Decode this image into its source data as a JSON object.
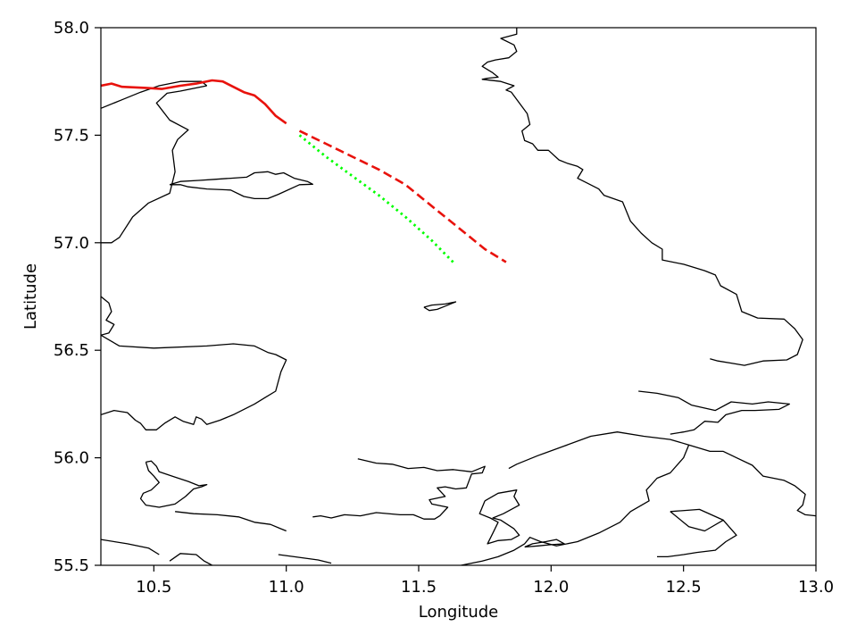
{
  "chart_data": {
    "type": "line",
    "title": "",
    "xlabel": "Longitude",
    "ylabel": "Latitude",
    "xlim": [
      10.3,
      13.0
    ],
    "ylim": [
      55.5,
      58.0
    ],
    "xticks": [
      10.5,
      11.0,
      11.5,
      12.0,
      12.5,
      13.0
    ],
    "xtick_labels": [
      "10.5",
      "11.0",
      "11.5",
      "12.0",
      "12.5",
      "13.0"
    ],
    "yticks": [
      55.5,
      56.0,
      56.5,
      57.0,
      57.5,
      58.0
    ],
    "ytick_labels": [
      "55.5",
      "56.0",
      "56.5",
      "57.0",
      "57.5",
      "58.0"
    ],
    "grid": false,
    "legend": "none",
    "series": [
      {
        "style": "solid",
        "color": "#e8120c",
        "lon": [
          10.3,
          10.34,
          10.38,
          10.47,
          10.53,
          10.6,
          10.66,
          10.72,
          10.76,
          10.8,
          10.84,
          10.88,
          10.92,
          10.96,
          11.0
        ],
        "lat": [
          57.73,
          57.74,
          57.725,
          57.72,
          57.715,
          57.73,
          57.74,
          57.755,
          57.75,
          57.725,
          57.7,
          57.685,
          57.645,
          57.59,
          57.555
        ]
      },
      {
        "style": "dashed",
        "color": "#e8120c",
        "lon": [
          11.05,
          11.15,
          11.25,
          11.35,
          11.45,
          11.55,
          11.65,
          11.75,
          11.83
        ],
        "lat": [
          57.52,
          57.46,
          57.4,
          57.34,
          57.27,
          57.17,
          57.07,
          56.97,
          56.91
        ]
      },
      {
        "style": "dotted",
        "color": "#00ff00",
        "lon": [
          11.05,
          11.15,
          11.25,
          11.35,
          11.45,
          11.55,
          11.63
        ],
        "lat": [
          57.5,
          57.4,
          57.31,
          57.22,
          57.12,
          57.01,
          56.91
        ]
      }
    ]
  },
  "coastlines": [
    [
      [
        10.3,
        57.625
      ],
      [
        10.38,
        57.665
      ],
      [
        10.45,
        57.7
      ],
      [
        10.52,
        57.73
      ],
      [
        10.6,
        57.75
      ],
      [
        10.68,
        57.75
      ],
      [
        10.7,
        57.73
      ]
    ],
    [
      [
        10.7,
        57.73
      ],
      [
        10.6,
        57.705
      ],
      [
        10.55,
        57.695
      ],
      [
        10.51,
        57.65
      ],
      [
        10.56,
        57.57
      ],
      [
        10.63,
        57.525
      ],
      [
        10.59,
        57.48
      ],
      [
        10.57,
        57.43
      ],
      [
        10.58,
        57.33
      ],
      [
        10.56,
        57.23
      ],
      [
        10.48,
        57.185
      ],
      [
        10.42,
        57.12
      ],
      [
        10.37,
        57.025
      ],
      [
        10.34,
        57.0
      ],
      [
        10.3,
        57.0
      ]
    ],
    [
      [
        10.3,
        56.75
      ],
      [
        10.33,
        56.72
      ],
      [
        10.34,
        56.68
      ],
      [
        10.32,
        56.64
      ],
      [
        10.35,
        56.62
      ],
      [
        10.33,
        56.58
      ],
      [
        10.3,
        56.57
      ]
    ],
    [
      [
        10.3,
        56.57
      ],
      [
        10.37,
        56.52
      ],
      [
        10.5,
        56.51
      ],
      [
        10.7,
        56.52
      ],
      [
        10.8,
        56.53
      ],
      [
        10.88,
        56.52
      ],
      [
        10.93,
        56.49
      ],
      [
        10.96,
        56.48
      ],
      [
        11.0,
        56.455
      ],
      [
        10.98,
        56.4
      ],
      [
        10.96,
        56.31
      ],
      [
        10.92,
        56.28
      ],
      [
        10.88,
        56.25
      ],
      [
        10.8,
        56.2
      ],
      [
        10.75,
        56.175
      ],
      [
        10.7,
        56.155
      ],
      [
        10.68,
        56.18
      ],
      [
        10.66,
        56.19
      ],
      [
        10.65,
        56.155
      ],
      [
        10.61,
        56.17
      ],
      [
        10.58,
        56.19
      ],
      [
        10.54,
        56.16
      ],
      [
        10.51,
        56.13
      ],
      [
        10.47,
        56.13
      ],
      [
        10.45,
        56.16
      ],
      [
        10.43,
        56.175
      ],
      [
        10.4,
        56.21
      ],
      [
        10.35,
        56.22
      ],
      [
        10.3,
        56.2
      ]
    ],
    [
      [
        10.47,
        55.98
      ],
      [
        10.48,
        55.94
      ],
      [
        10.5,
        55.915
      ],
      [
        10.52,
        55.885
      ],
      [
        10.49,
        55.85
      ],
      [
        10.46,
        55.835
      ],
      [
        10.45,
        55.81
      ],
      [
        10.47,
        55.78
      ],
      [
        10.52,
        55.77
      ],
      [
        10.58,
        55.785
      ],
      [
        10.62,
        55.82
      ],
      [
        10.65,
        55.855
      ],
      [
        10.68,
        55.865
      ],
      [
        10.7,
        55.875
      ],
      [
        10.67,
        55.87
      ],
      [
        10.63,
        55.89
      ],
      [
        10.58,
        55.91
      ],
      [
        10.52,
        55.935
      ],
      [
        10.51,
        55.96
      ],
      [
        10.49,
        55.985
      ],
      [
        10.47,
        55.98
      ]
    ],
    [
      [
        10.3,
        55.62
      ],
      [
        10.4,
        55.6
      ],
      [
        10.48,
        55.58
      ],
      [
        10.52,
        55.55
      ]
    ],
    [
      [
        10.56,
        55.52
      ],
      [
        10.6,
        55.555
      ],
      [
        10.66,
        55.55
      ],
      [
        10.69,
        55.52
      ],
      [
        10.72,
        55.5
      ]
    ],
    [
      [
        10.56,
        57.27
      ],
      [
        10.6,
        57.285
      ],
      [
        10.67,
        57.29
      ],
      [
        10.73,
        57.295
      ],
      [
        10.79,
        57.3
      ],
      [
        10.85,
        57.305
      ],
      [
        10.88,
        57.325
      ],
      [
        10.93,
        57.33
      ],
      [
        10.96,
        57.318
      ],
      [
        10.99,
        57.325
      ],
      [
        11.03,
        57.3
      ],
      [
        11.08,
        57.285
      ],
      [
        11.1,
        57.272
      ],
      [
        11.05,
        57.27
      ],
      [
        10.97,
        57.225
      ],
      [
        10.93,
        57.205
      ],
      [
        10.88,
        57.205
      ],
      [
        10.84,
        57.215
      ],
      [
        10.79,
        57.245
      ],
      [
        10.7,
        57.25
      ],
      [
        10.63,
        57.26
      ],
      [
        10.6,
        57.27
      ],
      [
        10.56,
        57.27
      ]
    ],
    [
      [
        11.52,
        56.7
      ],
      [
        11.55,
        56.71
      ],
      [
        11.6,
        56.715
      ],
      [
        11.64,
        56.725
      ],
      [
        11.6,
        56.705
      ],
      [
        11.57,
        56.69
      ],
      [
        11.54,
        56.685
      ],
      [
        11.52,
        56.7
      ]
    ],
    [
      [
        11.27,
        55.995
      ],
      [
        11.34,
        55.975
      ],
      [
        11.4,
        55.97
      ],
      [
        11.46,
        55.95
      ],
      [
        11.52,
        55.955
      ],
      [
        11.57,
        55.94
      ],
      [
        11.63,
        55.945
      ],
      [
        11.7,
        55.935
      ],
      [
        11.75,
        55.96
      ],
      [
        11.74,
        55.93
      ],
      [
        11.7,
        55.925
      ],
      [
        11.68,
        55.86
      ],
      [
        11.64,
        55.855
      ],
      [
        11.6,
        55.865
      ],
      [
        11.57,
        55.86
      ],
      [
        11.6,
        55.82
      ],
      [
        11.54,
        55.805
      ],
      [
        11.55,
        55.785
      ],
      [
        11.61,
        55.77
      ],
      [
        11.58,
        55.73
      ],
      [
        11.56,
        55.715
      ],
      [
        11.52,
        55.715
      ],
      [
        11.48,
        55.735
      ],
      [
        11.43,
        55.735
      ],
      [
        11.34,
        55.745
      ],
      [
        11.28,
        55.73
      ],
      [
        11.22,
        55.735
      ],
      [
        11.17,
        55.72
      ],
      [
        11.13,
        55.73
      ],
      [
        11.1,
        55.725
      ]
    ],
    [
      [
        11.84,
        55.95
      ],
      [
        11.87,
        55.97
      ],
      [
        11.95,
        56.01
      ],
      [
        12.05,
        56.055
      ],
      [
        12.15,
        56.1
      ],
      [
        12.25,
        56.12
      ],
      [
        12.35,
        56.1
      ],
      [
        12.45,
        56.085
      ],
      [
        12.52,
        56.06
      ],
      [
        12.6,
        56.03
      ],
      [
        12.65,
        56.03
      ],
      [
        12.7,
        56.0
      ],
      [
        12.76,
        55.965
      ],
      [
        12.8,
        55.915
      ],
      [
        12.88,
        55.895
      ],
      [
        12.92,
        55.87
      ],
      [
        12.96,
        55.83
      ],
      [
        12.95,
        55.78
      ],
      [
        12.93,
        55.755
      ],
      [
        12.96,
        55.735
      ],
      [
        13.0,
        55.73
      ]
    ],
    [
      [
        12.52,
        56.06
      ],
      [
        12.5,
        56.0
      ],
      [
        12.45,
        55.93
      ],
      [
        12.4,
        55.905
      ],
      [
        12.36,
        55.85
      ],
      [
        12.37,
        55.8
      ],
      [
        12.3,
        55.75
      ],
      [
        12.26,
        55.7
      ],
      [
        12.18,
        55.65
      ],
      [
        12.1,
        55.61
      ],
      [
        12.02,
        55.59
      ],
      [
        11.96,
        55.61
      ],
      [
        11.92,
        55.63
      ],
      [
        11.9,
        55.6
      ],
      [
        11.86,
        55.57
      ],
      [
        11.8,
        55.54
      ],
      [
        11.74,
        55.52
      ],
      [
        11.66,
        55.5
      ]
    ],
    [
      [
        12.33,
        56.31
      ],
      [
        12.4,
        56.3
      ],
      [
        12.48,
        56.28
      ],
      [
        12.53,
        56.245
      ],
      [
        12.62,
        56.22
      ],
      [
        12.68,
        56.26
      ],
      [
        12.76,
        56.25
      ],
      [
        12.82,
        56.26
      ],
      [
        12.9,
        56.25
      ],
      [
        12.86,
        56.225
      ],
      [
        12.77,
        56.22
      ],
      [
        12.72,
        56.22
      ],
      [
        12.66,
        56.2
      ],
      [
        12.63,
        56.165
      ],
      [
        12.58,
        56.17
      ],
      [
        12.54,
        56.13
      ],
      [
        12.5,
        56.12
      ],
      [
        12.45,
        56.11
      ]
    ],
    [
      [
        11.87,
        58.0
      ],
      [
        11.87,
        57.97
      ],
      [
        11.81,
        57.95
      ],
      [
        11.86,
        57.92
      ],
      [
        11.87,
        57.89
      ],
      [
        11.84,
        57.86
      ],
      [
        11.79,
        57.85
      ],
      [
        11.76,
        57.84
      ],
      [
        11.74,
        57.82
      ],
      [
        11.78,
        57.79
      ],
      [
        11.8,
        57.77
      ],
      [
        11.76,
        57.765
      ],
      [
        11.74,
        57.76
      ],
      [
        11.81,
        57.75
      ],
      [
        11.86,
        57.73
      ],
      [
        11.83,
        57.71
      ],
      [
        11.85,
        57.7
      ],
      [
        11.88,
        57.65
      ],
      [
        11.91,
        57.6
      ],
      [
        11.92,
        57.55
      ],
      [
        11.89,
        57.52
      ],
      [
        11.9,
        57.475
      ],
      [
        11.93,
        57.46
      ],
      [
        11.95,
        57.43
      ],
      [
        11.99,
        57.43
      ],
      [
        12.03,
        57.385
      ],
      [
        12.06,
        57.37
      ],
      [
        12.1,
        57.355
      ],
      [
        12.12,
        57.34
      ],
      [
        12.1,
        57.3
      ],
      [
        12.14,
        57.275
      ],
      [
        12.18,
        57.25
      ],
      [
        12.2,
        57.22
      ],
      [
        12.27,
        57.19
      ],
      [
        12.3,
        57.1
      ],
      [
        12.34,
        57.045
      ],
      [
        12.38,
        57.0
      ],
      [
        12.42,
        56.97
      ],
      [
        12.42,
        56.92
      ],
      [
        12.5,
        56.9
      ],
      [
        12.58,
        56.87
      ],
      [
        12.62,
        56.85
      ],
      [
        12.64,
        56.8
      ],
      [
        12.7,
        56.76
      ],
      [
        12.72,
        56.68
      ],
      [
        12.78,
        56.65
      ],
      [
        12.88,
        56.645
      ],
      [
        12.92,
        56.6
      ],
      [
        12.95,
        56.55
      ],
      [
        12.93,
        56.48
      ],
      [
        12.89,
        56.455
      ],
      [
        12.8,
        56.45
      ],
      [
        12.73,
        56.43
      ],
      [
        12.68,
        56.44
      ],
      [
        12.63,
        56.45
      ],
      [
        12.6,
        56.46
      ]
    ],
    [
      [
        12.65,
        55.71
      ],
      [
        12.7,
        55.64
      ],
      [
        12.66,
        55.61
      ],
      [
        12.62,
        55.57
      ],
      [
        12.55,
        55.56
      ],
      [
        12.5,
        55.55
      ],
      [
        12.44,
        55.54
      ],
      [
        12.4,
        55.54
      ]
    ],
    [
      [
        11.9,
        55.585
      ],
      [
        11.93,
        55.6
      ],
      [
        11.98,
        55.61
      ],
      [
        12.02,
        55.62
      ],
      [
        12.05,
        55.6
      ],
      [
        11.99,
        55.595
      ],
      [
        11.95,
        55.59
      ],
      [
        11.9,
        55.585
      ]
    ],
    [
      [
        11.75,
        55.8
      ],
      [
        11.8,
        55.835
      ],
      [
        11.87,
        55.85
      ],
      [
        11.86,
        55.82
      ],
      [
        11.88,
        55.78
      ],
      [
        11.82,
        55.74
      ],
      [
        11.78,
        55.72
      ],
      [
        11.81,
        55.71
      ],
      [
        11.86,
        55.67
      ],
      [
        11.88,
        55.64
      ],
      [
        11.85,
        55.62
      ],
      [
        11.8,
        55.615
      ],
      [
        11.76,
        55.6
      ],
      [
        11.78,
        55.65
      ],
      [
        11.8,
        55.7
      ],
      [
        11.77,
        55.72
      ],
      [
        11.73,
        55.74
      ],
      [
        11.75,
        55.8
      ]
    ],
    [
      [
        10.58,
        55.75
      ],
      [
        10.65,
        55.74
      ],
      [
        10.74,
        55.735
      ],
      [
        10.82,
        55.725
      ],
      [
        10.88,
        55.7
      ],
      [
        10.94,
        55.69
      ],
      [
        10.98,
        55.67
      ],
      [
        11.0,
        55.66
      ]
    ],
    [
      [
        10.97,
        55.55
      ],
      [
        11.03,
        55.54
      ],
      [
        11.12,
        55.525
      ],
      [
        11.17,
        55.51
      ]
    ],
    [
      [
        12.45,
        55.75
      ],
      [
        12.52,
        55.68
      ],
      [
        12.58,
        55.66
      ],
      [
        12.65,
        55.71
      ],
      [
        12.56,
        55.76
      ],
      [
        12.45,
        55.75
      ]
    ]
  ]
}
